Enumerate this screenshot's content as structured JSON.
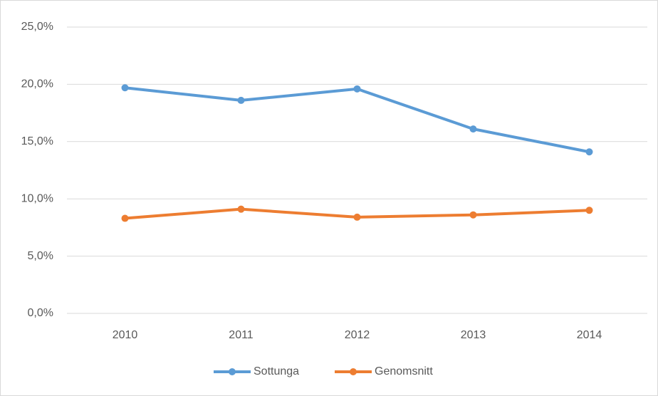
{
  "chart_data": {
    "type": "line",
    "categories": [
      "2010",
      "2011",
      "2012",
      "2013",
      "2014"
    ],
    "series": [
      {
        "name": "Sottunga",
        "color": "#5b9bd5",
        "values": [
          19.7,
          18.6,
          19.6,
          16.1,
          14.1
        ]
      },
      {
        "name": "Genomsnitt",
        "color": "#ed7d31",
        "values": [
          8.3,
          9.1,
          8.4,
          8.6,
          9.0
        ]
      }
    ],
    "ylim": [
      0,
      25
    ],
    "yticks": [
      {
        "value": 0,
        "label": "0,0%"
      },
      {
        "value": 5,
        "label": "5,0%"
      },
      {
        "value": 10,
        "label": "10,0%"
      },
      {
        "value": 15,
        "label": "15,0%"
      },
      {
        "value": 20,
        "label": "20,0%"
      },
      {
        "value": 25,
        "label": "25,0%"
      }
    ],
    "grid": true,
    "legend": "bottom"
  }
}
